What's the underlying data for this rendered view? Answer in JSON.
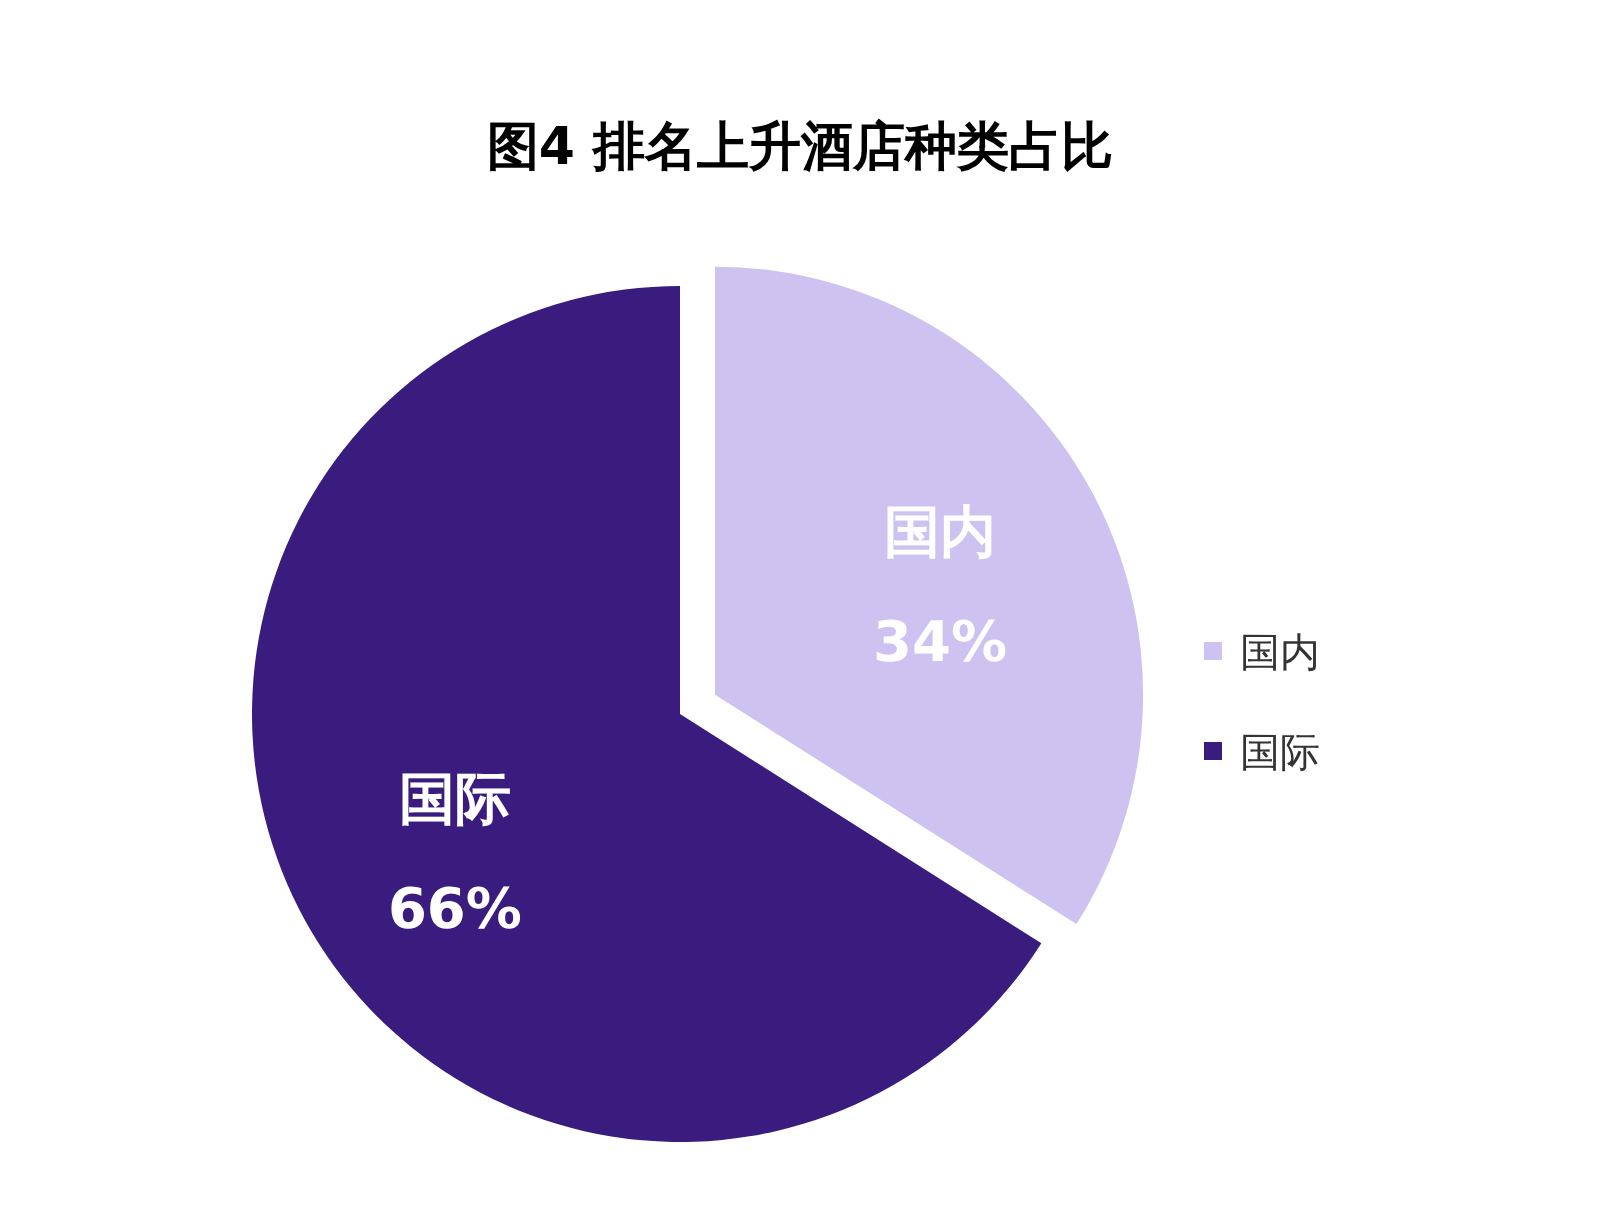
{
  "chart_data": {
    "type": "pie",
    "title": "图4 排名上升酒店种类占比",
    "categories": [
      "国内",
      "国际"
    ],
    "values": [
      34,
      66
    ],
    "value_labels": [
      "34%",
      "66%"
    ],
    "colors": [
      "#cdc2f0",
      "#3a1c7e"
    ],
    "legend": "right"
  }
}
